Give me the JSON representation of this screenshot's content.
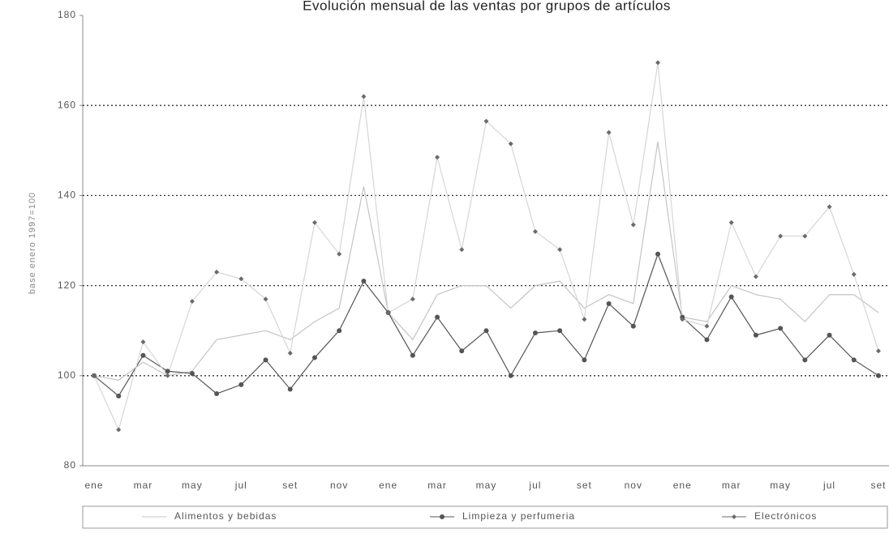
{
  "chart_data": {
    "type": "line",
    "title": "Evolución mensual de las ventas por grupos de artículos",
    "y_label": "base enero 1997=100",
    "categories": [
      "ene",
      null,
      "mar",
      null,
      "may",
      null,
      "jul",
      null,
      "set",
      null,
      "nov",
      null,
      "ene",
      null,
      "mar",
      null,
      "may",
      null,
      "jul",
      null,
      "set",
      null,
      "nov",
      null,
      "ene",
      null,
      "mar",
      null,
      "may",
      null,
      "jul",
      null,
      "set"
    ],
    "series": [
      {
        "name": "Alimentos y bebidas",
        "color": "#c4c4c4",
        "marker": "none",
        "values": [
          100,
          99,
          103,
          100,
          101,
          108,
          109,
          110,
          108,
          112,
          115,
          142,
          114,
          108,
          118,
          120,
          120,
          115,
          120,
          121,
          115,
          118,
          116,
          152,
          113,
          112,
          120,
          118,
          117,
          112,
          118,
          118,
          114
        ]
      },
      {
        "name": "Limpieza y perfumeria",
        "color": "#555555",
        "marker": "circle",
        "values": [
          100,
          95.5,
          104.5,
          101,
          100.5,
          96,
          98,
          103.5,
          97,
          104,
          110,
          121,
          114,
          104.5,
          113,
          105.5,
          110,
          100,
          109.5,
          110,
          103.5,
          116,
          111,
          127,
          113,
          108,
          117.5,
          109,
          110.5,
          103.5,
          109,
          103.5,
          100
        ]
      },
      {
        "name": "Electrónicos",
        "color": "#d6d6d6",
        "marker": "diamond",
        "marker_color": "#6a6a6a",
        "values": [
          100,
          88,
          107.5,
          100,
          116.5,
          123,
          121.5,
          117,
          105,
          134,
          127,
          162,
          114,
          117,
          148.5,
          128,
          156.5,
          151.5,
          132,
          128,
          112.5,
          154,
          133.5,
          169.5,
          112.5,
          111,
          134,
          122,
          131,
          131,
          137.5,
          122.5,
          105.5
        ]
      }
    ],
    "ylim": [
      80,
      180
    ],
    "yticks": [
      80,
      100,
      120,
      140,
      160,
      180
    ],
    "grid": true
  }
}
